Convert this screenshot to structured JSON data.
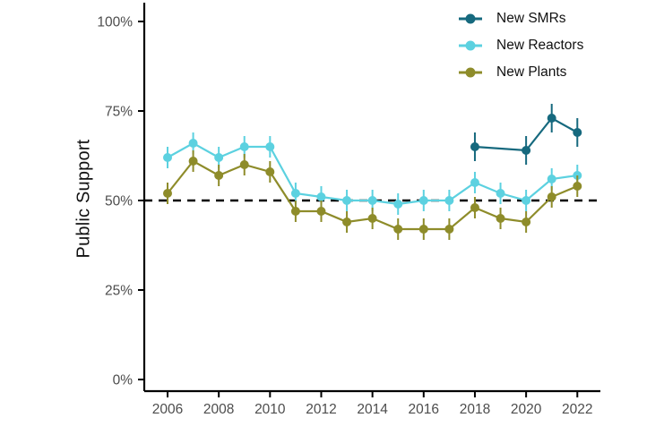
{
  "chart_data": {
    "type": "line",
    "title": "",
    "xlabel": "",
    "ylabel": "Public Support",
    "legend_position": "top-right-inside",
    "grid": false,
    "background": "#ffffff",
    "axis_color": "#000000",
    "tick_label_color": "#4d4d4d",
    "reference_line": {
      "y": 50,
      "style": "dashed",
      "color": "#000000"
    },
    "x_axis": {
      "tick_values": [
        2006,
        2008,
        2010,
        2012,
        2014,
        2016,
        2018,
        2020,
        2022
      ],
      "tick_labels": [
        "2006",
        "2008",
        "2010",
        "2012",
        "2014",
        "2016",
        "2018",
        "2020",
        "2022"
      ],
      "xlim": [
        2005.1,
        2022.9
      ]
    },
    "y_axis": {
      "tick_values": [
        0,
        25,
        50,
        75,
        100
      ],
      "tick_labels": [
        "0%",
        "25%",
        "50%",
        "75%",
        "100%"
      ],
      "ylim": [
        0,
        100
      ]
    },
    "series": [
      {
        "name": "New SMRs",
        "color": "#16697E",
        "x": [
          2018,
          2020,
          2021,
          2022
        ],
        "values": [
          65,
          64,
          73,
          69
        ],
        "moe": 4
      },
      {
        "name": "New Reactors",
        "color": "#5CD1E0",
        "x": [
          2006,
          2007,
          2008,
          2009,
          2010,
          2011,
          2012,
          2013,
          2014,
          2015,
          2016,
          2017,
          2018,
          2019,
          2020,
          2021,
          2022
        ],
        "values": [
          62,
          66,
          62,
          65,
          65,
          52,
          51,
          50,
          50,
          49,
          50,
          50,
          55,
          52,
          50,
          56,
          57
        ],
        "moe": 3
      },
      {
        "name": "New Plants",
        "color": "#8E8C2A",
        "x": [
          2006,
          2007,
          2008,
          2009,
          2010,
          2011,
          2012,
          2013,
          2014,
          2015,
          2016,
          2017,
          2018,
          2019,
          2020,
          2021,
          2022
        ],
        "values": [
          52,
          61,
          57,
          60,
          58,
          47,
          47,
          44,
          45,
          42,
          42,
          42,
          48,
          45,
          44,
          51,
          54
        ],
        "moe": 3
      }
    ]
  }
}
